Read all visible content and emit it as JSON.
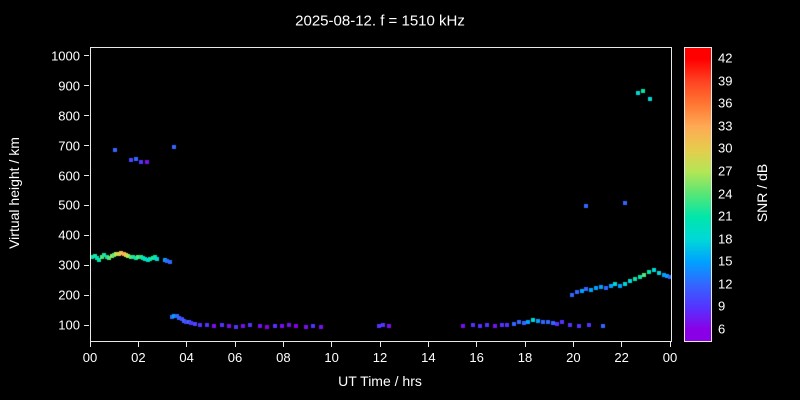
{
  "chart_data": {
    "type": "scatter",
    "title": "2025-08-12. f = 1510 kHz",
    "xlabel": "UT Time / hrs",
    "ylabel": "Virtual height / km",
    "colorbar_label": "SNR / dB",
    "background": "#000000",
    "frame_color": "#e8e8e8",
    "xlim": [
      0,
      24
    ],
    "ylim": [
      50,
      1030
    ],
    "x_ticks": [
      {
        "v": 0,
        "label": "00"
      },
      {
        "v": 2,
        "label": "02"
      },
      {
        "v": 4,
        "label": "04"
      },
      {
        "v": 6,
        "label": "06"
      },
      {
        "v": 8,
        "label": "08"
      },
      {
        "v": 10,
        "label": "10"
      },
      {
        "v": 12,
        "label": "12"
      },
      {
        "v": 14,
        "label": "14"
      },
      {
        "v": 16,
        "label": "16"
      },
      {
        "v": 18,
        "label": "18"
      },
      {
        "v": 20,
        "label": "20"
      },
      {
        "v": 22,
        "label": "22"
      },
      {
        "v": 24,
        "label": "00"
      }
    ],
    "y_ticks": [
      100,
      200,
      300,
      400,
      500,
      600,
      700,
      800,
      900,
      1000
    ],
    "colorbar": {
      "min": 4.5,
      "max": 43.5,
      "ticks": [
        6,
        9,
        12,
        15,
        18,
        21,
        24,
        27,
        30,
        33,
        36,
        39,
        42
      ],
      "stops": [
        {
          "v": 6,
          "c": "#8a00e6"
        },
        {
          "v": 9,
          "c": "#5533ff"
        },
        {
          "v": 12,
          "c": "#3366ff"
        },
        {
          "v": 15,
          "c": "#00a0ff"
        },
        {
          "v": 18,
          "c": "#00d8d8"
        },
        {
          "v": 21,
          "c": "#00e6aa"
        },
        {
          "v": 24,
          "c": "#55e677"
        },
        {
          "v": 27,
          "c": "#b3e655"
        },
        {
          "v": 30,
          "c": "#e6cc4d"
        },
        {
          "v": 33,
          "c": "#ffaa55"
        },
        {
          "v": 36,
          "c": "#ff7733"
        },
        {
          "v": 39,
          "c": "#ff4422"
        },
        {
          "v": 42,
          "c": "#ff0000"
        }
      ]
    },
    "points": [
      [
        0.05,
        330,
        21
      ],
      [
        0.15,
        335,
        22
      ],
      [
        0.25,
        328,
        20
      ],
      [
        0.35,
        322,
        21
      ],
      [
        0.45,
        330,
        24
      ],
      [
        0.55,
        336,
        22
      ],
      [
        0.65,
        332,
        21
      ],
      [
        0.75,
        328,
        24
      ],
      [
        0.85,
        333,
        26
      ],
      [
        0.95,
        338,
        24
      ],
      [
        1.05,
        340,
        27
      ],
      [
        1.15,
        342,
        30
      ],
      [
        1.25,
        345,
        31
      ],
      [
        1.35,
        342,
        33
      ],
      [
        1.45,
        338,
        30
      ],
      [
        1.55,
        335,
        27
      ],
      [
        1.65,
        332,
        24
      ],
      [
        1.75,
        330,
        22
      ],
      [
        1.85,
        328,
        21
      ],
      [
        1.95,
        330,
        24
      ],
      [
        2.05,
        332,
        22
      ],
      [
        2.15,
        328,
        21
      ],
      [
        2.25,
        325,
        20
      ],
      [
        2.35,
        322,
        18
      ],
      [
        2.45,
        325,
        21
      ],
      [
        2.55,
        328,
        22
      ],
      [
        2.65,
        330,
        21
      ],
      [
        2.75,
        325,
        18
      ],
      [
        3.05,
        320,
        15
      ],
      [
        3.15,
        318,
        12
      ],
      [
        3.25,
        315,
        12
      ],
      [
        1.0,
        690,
        12
      ],
      [
        1.65,
        655,
        10
      ],
      [
        1.85,
        660,
        12
      ],
      [
        2.05,
        650,
        9
      ],
      [
        2.3,
        648,
        7
      ],
      [
        3.45,
        700,
        12
      ],
      [
        3.35,
        130,
        12
      ],
      [
        3.45,
        135,
        15
      ],
      [
        3.55,
        132,
        12
      ],
      [
        3.65,
        128,
        12
      ],
      [
        3.75,
        122,
        10
      ],
      [
        3.85,
        118,
        12
      ],
      [
        3.95,
        112,
        10
      ],
      [
        4.05,
        115,
        12
      ],
      [
        4.15,
        110,
        9
      ],
      [
        4.3,
        108,
        10
      ],
      [
        4.5,
        105,
        9
      ],
      [
        4.8,
        102,
        9
      ],
      [
        5.1,
        100,
        7
      ],
      [
        5.4,
        103,
        9
      ],
      [
        5.7,
        100,
        7
      ],
      [
        6.0,
        98,
        9
      ],
      [
        6.3,
        100,
        7
      ],
      [
        6.6,
        102,
        9
      ],
      [
        7.0,
        100,
        7
      ],
      [
        7.3,
        98,
        6
      ],
      [
        7.6,
        100,
        9
      ],
      [
        7.9,
        100,
        7
      ],
      [
        8.2,
        102,
        7
      ],
      [
        8.5,
        100,
        6
      ],
      [
        8.9,
        98,
        7
      ],
      [
        9.2,
        100,
        9
      ],
      [
        9.5,
        98,
        7
      ],
      [
        11.9,
        100,
        9
      ],
      [
        12.1,
        102,
        9
      ],
      [
        12.35,
        100,
        7
      ],
      [
        15.4,
        100,
        7
      ],
      [
        15.8,
        102,
        9
      ],
      [
        16.1,
        100,
        9
      ],
      [
        16.4,
        103,
        9
      ],
      [
        16.7,
        100,
        7
      ],
      [
        17.0,
        105,
        9
      ],
      [
        17.2,
        102,
        9
      ],
      [
        17.5,
        108,
        12
      ],
      [
        17.7,
        112,
        12
      ],
      [
        17.9,
        110,
        12
      ],
      [
        18.1,
        115,
        15
      ],
      [
        18.3,
        120,
        18
      ],
      [
        18.5,
        118,
        15
      ],
      [
        18.7,
        115,
        12
      ],
      [
        18.9,
        112,
        12
      ],
      [
        19.1,
        110,
        12
      ],
      [
        19.3,
        108,
        9
      ],
      [
        19.5,
        112,
        9
      ],
      [
        19.8,
        105,
        9
      ],
      [
        20.2,
        100,
        9
      ],
      [
        20.6,
        102,
        9
      ],
      [
        21.2,
        100,
        12
      ],
      [
        19.9,
        205,
        12
      ],
      [
        20.1,
        215,
        12
      ],
      [
        20.3,
        218,
        15
      ],
      [
        20.5,
        225,
        12
      ],
      [
        20.7,
        220,
        15
      ],
      [
        20.9,
        228,
        15
      ],
      [
        21.1,
        232,
        15
      ],
      [
        21.3,
        228,
        12
      ],
      [
        21.5,
        235,
        15
      ],
      [
        21.7,
        240,
        18
      ],
      [
        21.9,
        235,
        15
      ],
      [
        22.1,
        242,
        18
      ],
      [
        22.3,
        250,
        18
      ],
      [
        22.5,
        258,
        21
      ],
      [
        22.7,
        265,
        21
      ],
      [
        22.9,
        272,
        24
      ],
      [
        23.1,
        280,
        21
      ],
      [
        23.3,
        288,
        18
      ],
      [
        23.5,
        278,
        18
      ],
      [
        23.7,
        270,
        15
      ],
      [
        23.85,
        268,
        15
      ],
      [
        23.95,
        265,
        12
      ],
      [
        20.5,
        500,
        12
      ],
      [
        22.1,
        510,
        12
      ],
      [
        22.65,
        880,
        18
      ],
      [
        22.85,
        885,
        21
      ],
      [
        23.15,
        860,
        18
      ]
    ]
  }
}
